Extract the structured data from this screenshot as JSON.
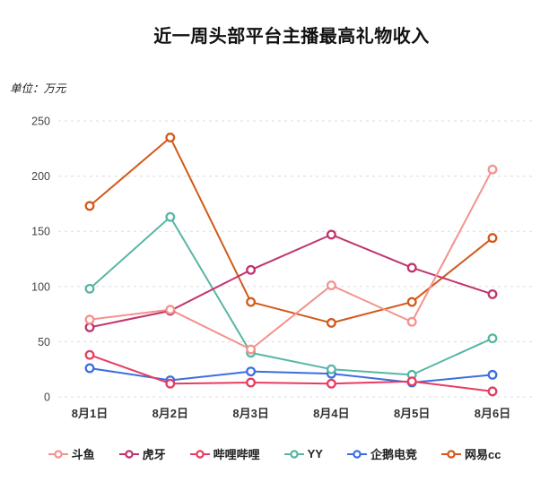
{
  "page": {
    "unit_label": "单位：万元"
  },
  "chart_data": {
    "type": "line",
    "title": "近一周头部平台主播最高礼物收入",
    "unit_label": "单位：万元",
    "ylabel": "万元",
    "ylim": [
      0,
      250
    ],
    "ytick_step": 50,
    "yticks": [
      0,
      50,
      100,
      150,
      200,
      250
    ],
    "grid": "horizontal-dashed",
    "gridline_color": "#DCDCDC",
    "axis_text_color": "#444444",
    "legend_position": "bottom",
    "marker": "open-circle",
    "categories": [
      "8月1日",
      "8月2日",
      "8月3日",
      "8月4日",
      "8月5日",
      "8月6日"
    ],
    "series": [
      {
        "name": "斗鱼",
        "key": "douyu",
        "color": "#F2938E",
        "values": [
          70,
          79,
          43,
          101,
          68,
          206
        ]
      },
      {
        "name": "虎牙",
        "key": "huya",
        "color": "#C0336E",
        "values": [
          63,
          78,
          115,
          147,
          117,
          93
        ]
      },
      {
        "name": "哔哩哔哩",
        "key": "bilibili",
        "color": "#E73C5F",
        "values": [
          38,
          12,
          13,
          12,
          14,
          5
        ]
      },
      {
        "name": "YY",
        "key": "yy",
        "color": "#58B5A5",
        "values": [
          98,
          163,
          40,
          25,
          20,
          53
        ]
      },
      {
        "name": "企鹅电竞",
        "key": "qie-esports",
        "color": "#3C6EE0",
        "values": [
          26,
          15,
          23,
          21,
          13,
          20
        ]
      },
      {
        "name": "网易cc",
        "key": "wangyi-cc",
        "color": "#D2591A",
        "values": [
          173,
          235,
          86,
          67,
          86,
          144
        ]
      }
    ]
  }
}
